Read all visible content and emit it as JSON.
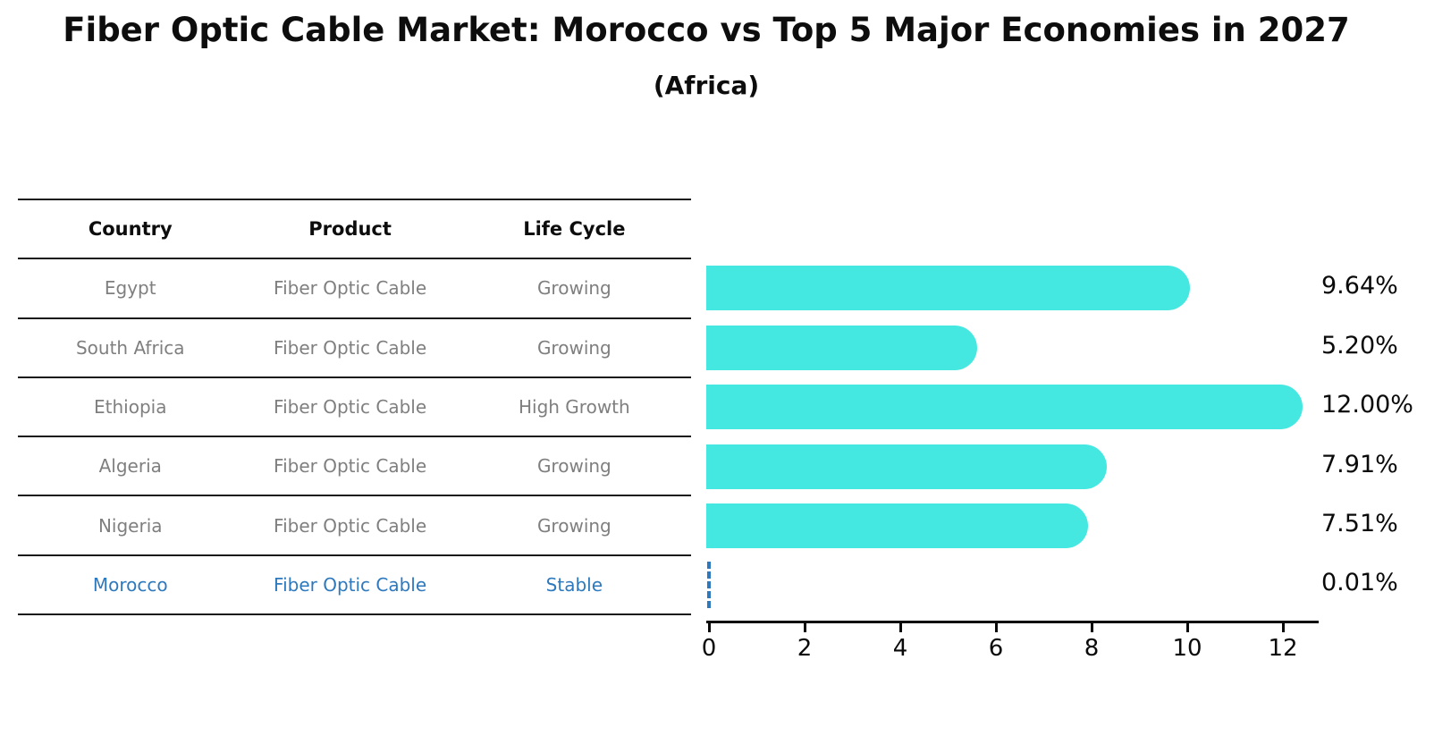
{
  "title": "Fiber Optic Cable Market: Morocco vs Top 5 Major Economies in 2027",
  "subtitle": "(Africa)",
  "table": {
    "headers": [
      "Country",
      "Product",
      "Life Cycle"
    ],
    "rows": [
      {
        "country": "Egypt",
        "product": "Fiber Optic Cable",
        "life_cycle": "Growing",
        "highlight": false
      },
      {
        "country": "South Africa",
        "product": "Fiber Optic Cable",
        "life_cycle": "Growing",
        "highlight": false
      },
      {
        "country": "Ethiopia",
        "product": "Fiber Optic Cable",
        "life_cycle": "High Growth",
        "highlight": false
      },
      {
        "country": "Algeria",
        "product": "Fiber Optic Cable",
        "life_cycle": "Growing",
        "highlight": false
      },
      {
        "country": "Nigeria",
        "product": "Fiber Optic Cable",
        "life_cycle": "Growing",
        "highlight": true
      }
    ]
  },
  "chart_data": {
    "type": "bar",
    "orientation": "horizontal",
    "title": "Fiber Optic Cable Market: Morocco vs Top 5 Major Economies in 2027",
    "subtitle": "(Africa)",
    "categories": [
      "Egypt",
      "South Africa",
      "Ethiopia",
      "Algeria",
      "Nigeria",
      "Morocco"
    ],
    "values": [
      9.64,
      5.2,
      12.0,
      7.91,
      7.51,
      0.01
    ],
    "value_labels": [
      "9.64%",
      "5.20%",
      "12.00%",
      "7.91%",
      "7.51%",
      "0.01%"
    ],
    "x_ticks": [
      0,
      2,
      4,
      6,
      8,
      10,
      12
    ],
    "xlim": [
      0,
      12.7
    ],
    "grid": false,
    "legend": "none",
    "bar_color": "#45E8E1",
    "highlight_bar_style": "dashed-outline",
    "highlight_color": "#2e79be",
    "axis_color": "#0a0a0a"
  },
  "colors": {
    "bar_cyan": "#45E8E1",
    "highlight_blue": "#2e79be",
    "text_gray": "#7f7f7f",
    "text_black": "#0d0d0d",
    "line_dark": "#1a1a1a"
  }
}
